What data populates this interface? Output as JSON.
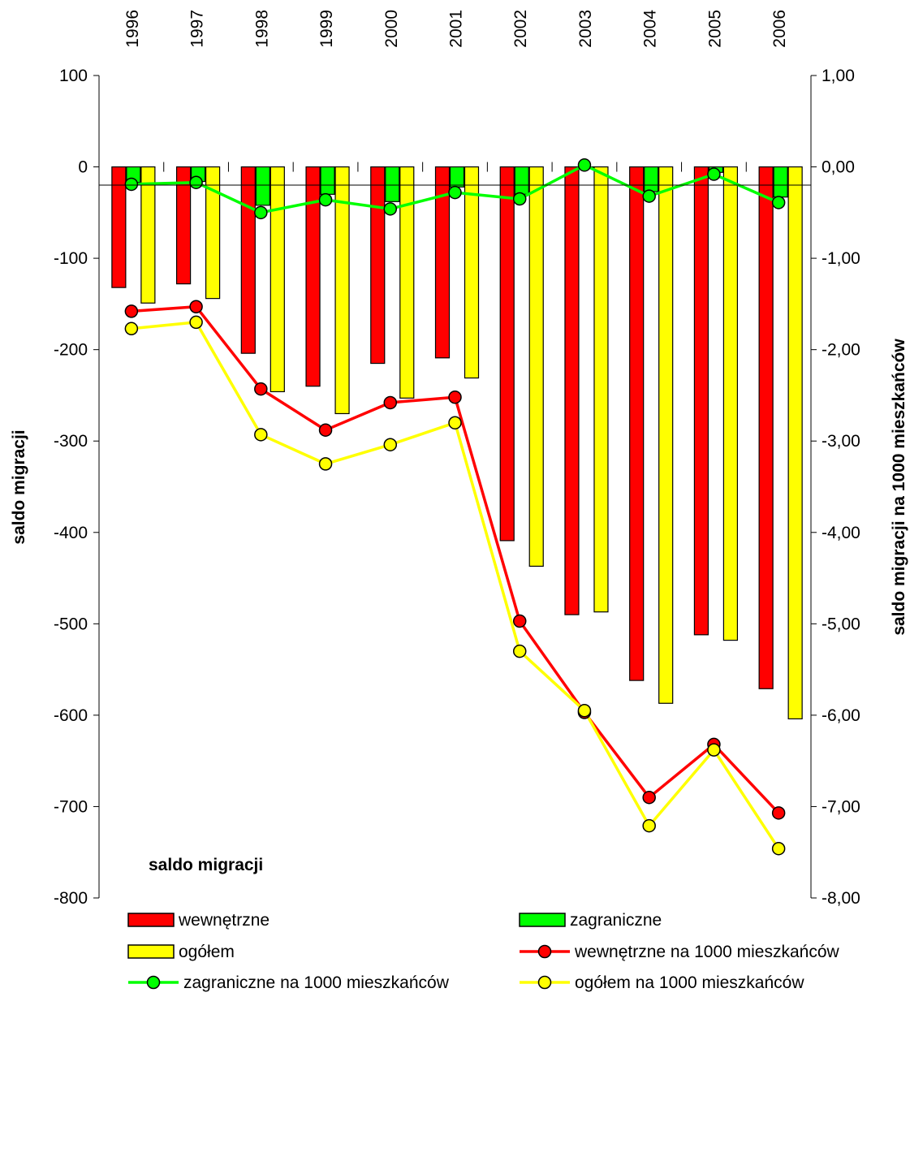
{
  "chart_data": {
    "type": "bar",
    "categories": [
      "1996",
      "1997",
      "1998",
      "1999",
      "2000",
      "2001",
      "2002",
      "2003",
      "2004",
      "2005",
      "2006"
    ],
    "bar_series": [
      {
        "name": "wewnętrzne",
        "color": "#ff0000",
        "values": [
          -132,
          -128,
          -204,
          -240,
          -215,
          -209,
          -409,
          -490,
          -562,
          -512,
          -571
        ]
      },
      {
        "name": "zagraniczne",
        "color": "#00ff00",
        "values": [
          -17,
          -16,
          -42,
          -30,
          -38,
          -22,
          -30,
          0,
          -27,
          -6,
          -33
        ]
      },
      {
        "name": "ogółem",
        "color": "#ffff00",
        "values": [
          -149,
          -144,
          -246,
          -270,
          -253,
          -231,
          -437,
          -487,
          -587,
          -518,
          -604
        ]
      }
    ],
    "line_series": [
      {
        "name": "wewnętrzne na 1000 mieszkańców",
        "color": "#ff0000",
        "values": [
          -1.58,
          -1.53,
          -2.43,
          -2.88,
          -2.58,
          -2.52,
          -4.97,
          -5.97,
          -6.9,
          -6.32,
          -7.07
        ]
      },
      {
        "name": "zagraniczne na 1000 mieszkańców",
        "color": "#00ff00",
        "values": [
          -0.19,
          -0.17,
          -0.5,
          -0.36,
          -0.46,
          -0.28,
          -0.35,
          0.02,
          -0.32,
          -0.08,
          -0.39
        ]
      },
      {
        "name": "ogółem na 1000 mieszkańców",
        "color": "#ffff00",
        "values": [
          -1.77,
          -1.7,
          -2.93,
          -3.25,
          -3.04,
          -2.8,
          -5.3,
          -5.95,
          -7.21,
          -6.38,
          -7.46
        ]
      }
    ],
    "y_left": {
      "label": "saldo migracji",
      "min": -800,
      "max": 100,
      "step": 100,
      "tick_labels": [
        "100",
        "0",
        "-100",
        "-200",
        "-300",
        "-400",
        "-500",
        "-600",
        "-700",
        "-800"
      ]
    },
    "y_right": {
      "label": "saldo migracji na 1000 mieszkańców",
      "min": -8,
      "max": 1,
      "step": 1,
      "tick_labels": [
        "1,00",
        "0,00",
        "-1,00",
        "-2,00",
        "-3,00",
        "-4,00",
        "-5,00",
        "-6,00",
        "-7,00",
        "-8,00"
      ]
    },
    "legend_title": "saldo migracji",
    "legend_placement": "bottom",
    "grid": false
  }
}
